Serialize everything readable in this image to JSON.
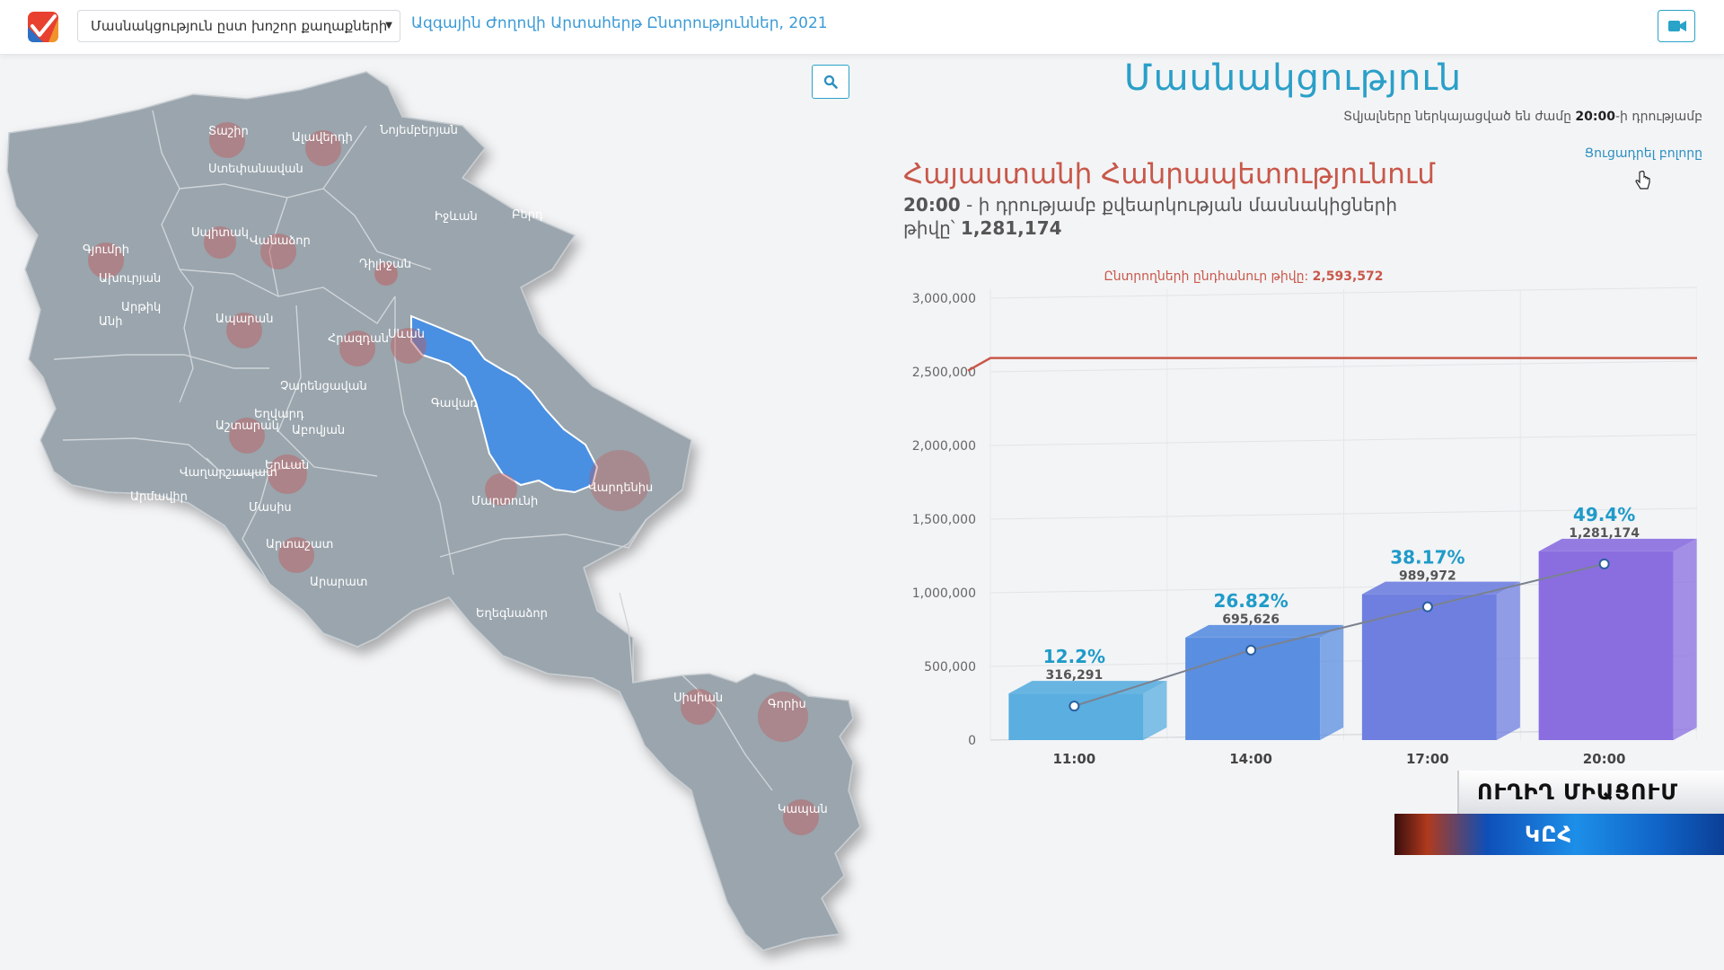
{
  "header": {
    "select_value": "Մասնակցություն ըստ խոշոր քաղաքների",
    "election_title": "Ազգային Ժողովի Արտահերթ Ընտրություններ, 2021"
  },
  "panel": {
    "title": "Մասնակցություն",
    "note_prefix": "Տվյալները ներկայացված են ժամը",
    "note_time": "20:00",
    "note_suffix": "-ի դրությամբ",
    "show_all": "Ցուցադրել բոլորը",
    "country": "Հայաստանի Հանրապետությունում",
    "sub_time": "20:00",
    "sub_text": " - ի դրությամբ քվեարկության մասնակիցների",
    "sub2_text": "թիվը՝",
    "sub2_value": "1,281,174"
  },
  "map": {
    "labels": [
      "Տաշիր",
      "Ալավերդի",
      "Նոյեմբերյան",
      "Ստեփանավան",
      "Գյումրի",
      "Սպիտակ",
      "Վանաձոր",
      "Դիլիջան",
      "Իջևան",
      "Բերդ",
      "Ախուրյան",
      "Արթիկ",
      "Անի",
      "Ապարան",
      "Հրազդան",
      "Սևան",
      "Չարենցավան",
      "Եղվարդ",
      "Աշտարակ",
      "Աբովյան",
      "Գավառ",
      "Վաղարշապատ",
      "Երևան",
      "Արմավիր",
      "Մասիս",
      "Մարտունի",
      "Վարդենիս",
      "Արտաշատ",
      "Արարատ",
      "Եղեգնաձոր",
      "Սիսիան",
      "Գորիս",
      "Կապան"
    ],
    "highlight_color": "#4a90e2"
  },
  "chart_data": {
    "type": "bar",
    "categories": [
      "11:00",
      "14:00",
      "17:00",
      "20:00"
    ],
    "values": [
      316291,
      695626,
      989972,
      1281174
    ],
    "value_labels": [
      "316,291",
      "695,626",
      "989,972",
      "1,281,174"
    ],
    "percent_labels": [
      "12.2%",
      "26.82%",
      "38.17%",
      "49.4%"
    ],
    "total_label": "Ընտրողների ընդհանուր թիվը:",
    "total_value_label": "2,593,572",
    "total_value": 2593572,
    "ylim": [
      0,
      3000000
    ],
    "yticks": [
      0,
      500000,
      1000000,
      1500000,
      2000000,
      2500000,
      3000000
    ],
    "ytick_labels": [
      "0",
      "500,000",
      "1,000,000",
      "1,500,000",
      "2,000,000",
      "2,500,000",
      "3,000,000"
    ],
    "bar_colors": [
      "#5aaee0",
      "#5a8ee0",
      "#6f7fe0",
      "#8a6ee0"
    ],
    "total_line_color": "#c8584a",
    "trend_line_color": "#7a8290",
    "grid": true
  },
  "banner": {
    "top": "ՈՒՂԻՂ ՄԻԱՑՈՒՄ",
    "bottom": "ԿԸՀ"
  }
}
